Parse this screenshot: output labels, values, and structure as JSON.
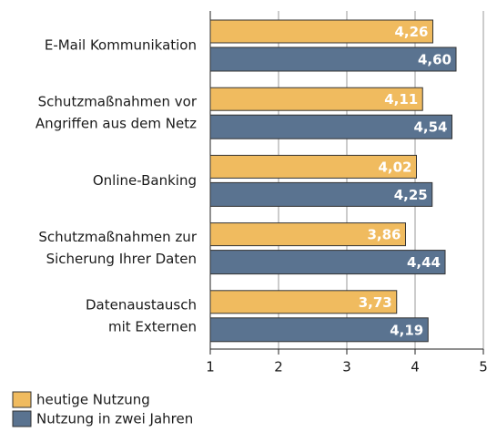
{
  "chart_data": {
    "type": "bar",
    "orientation": "horizontal",
    "categories": [
      [
        "E-Mail Kommunikation"
      ],
      [
        "Schutzmaßnahmen vor",
        "Angriffen aus dem Netz"
      ],
      [
        "Online-Banking"
      ],
      [
        "Schutzmaßnahmen zur",
        "Sicherung Ihrer Daten"
      ],
      [
        "Datenaustausch",
        "mit Externen"
      ]
    ],
    "series": [
      {
        "name": "heutige Nutzung",
        "color": "#f0bb5f",
        "values": [
          4.26,
          4.11,
          4.02,
          3.86,
          3.73
        ],
        "value_labels": [
          "4,26",
          "4,11",
          "4,02",
          "3,86",
          "3,73"
        ]
      },
      {
        "name": "Nutzung in zwei Jahren",
        "color": "#5a7390",
        "values": [
          4.6,
          4.54,
          4.25,
          4.44,
          4.19
        ],
        "value_labels": [
          "4,60",
          "4,54",
          "4,25",
          "4,44",
          "4,19"
        ]
      }
    ],
    "xlim": [
      1,
      5
    ],
    "xticks": [
      1,
      2,
      3,
      4,
      5
    ],
    "grid": true,
    "legend": "bottom-left"
  }
}
